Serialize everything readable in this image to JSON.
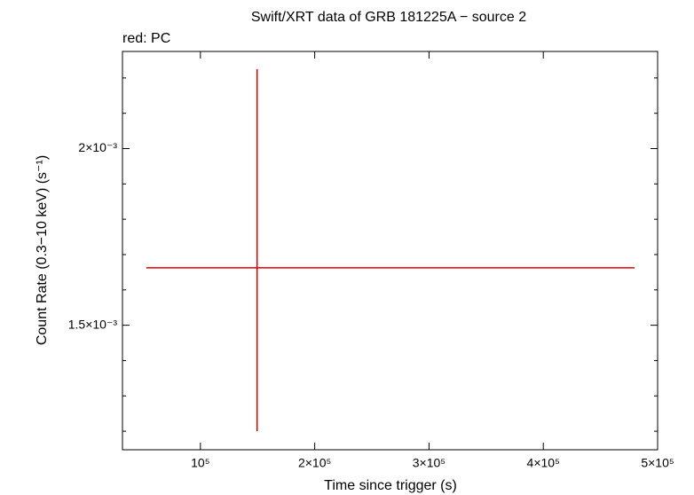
{
  "chart_data": {
    "type": "errorbar",
    "title": "Swift/XRT data of GRB 181225A − source 2",
    "subtitle": "red: PC",
    "x_label": "Time since trigger (s)",
    "y_label": "Count Rate (0.3−10 keV) (s⁻¹)",
    "xlim": [
      31800,
      500000
    ],
    "ylim": [
      0.0011475,
      0.002275
    ],
    "xticks": [
      {
        "value": 100000,
        "label": "10⁵"
      },
      {
        "value": 200000,
        "label": "2×10⁵"
      },
      {
        "value": 300000,
        "label": "3×10⁵"
      },
      {
        "value": 400000,
        "label": "4×10⁵"
      },
      {
        "value": 500000,
        "label": "5×10⁵"
      }
    ],
    "yticks": [
      {
        "value": 0.0015,
        "label": "1.5×10⁻³"
      },
      {
        "value": 0.002,
        "label": "2×10⁻³"
      }
    ],
    "yminorticks": [
      0.0012,
      0.0013,
      0.0014,
      0.0016,
      0.0017,
      0.0018,
      0.0019,
      0.0021,
      0.0022
    ],
    "series": [
      {
        "name": "PC",
        "color": "#e00000",
        "x": [
          149600
        ],
        "x_lower": [
          52700
        ],
        "x_upper": [
          479800
        ],
        "values": [
          0.0016625
        ],
        "y_lower": [
          0.0012
        ],
        "y_upper": [
          0.002225
        ]
      }
    ]
  }
}
